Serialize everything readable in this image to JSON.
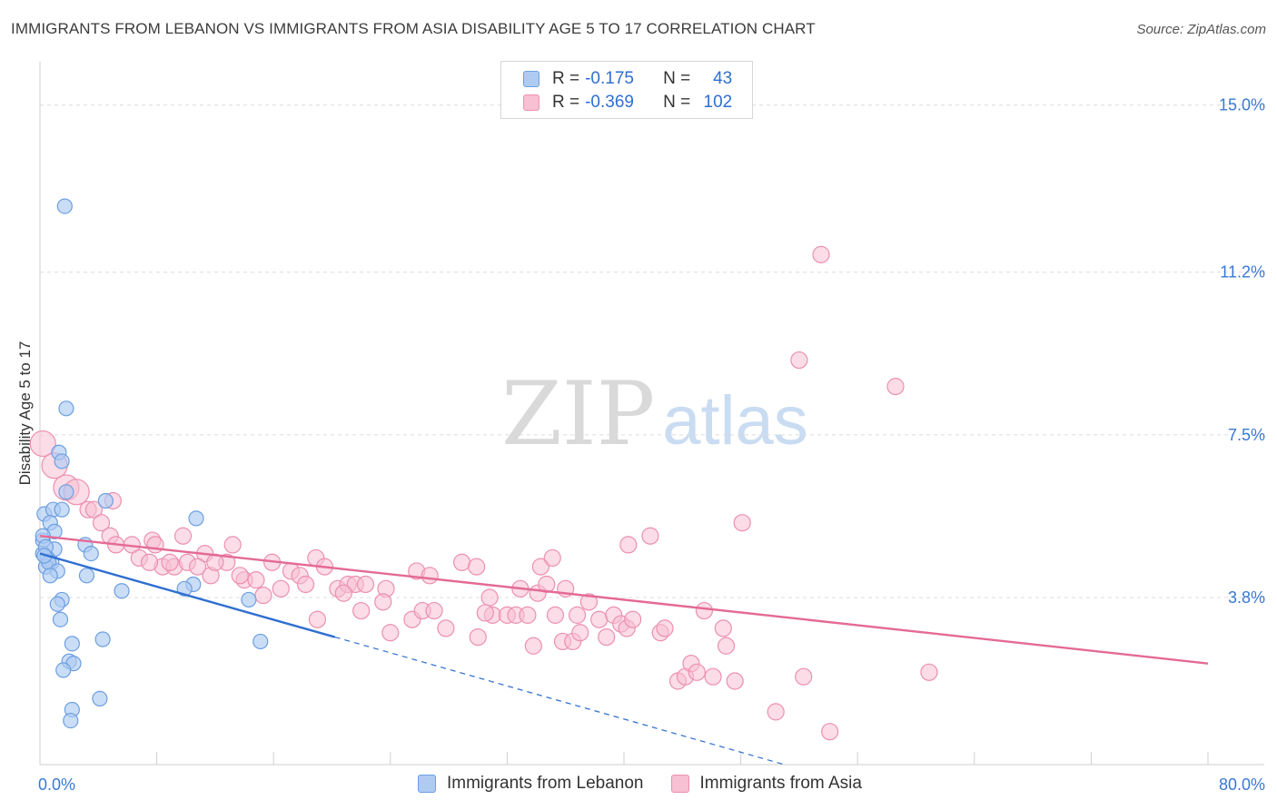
{
  "header": {
    "title": "IMMIGRANTS FROM LEBANON VS IMMIGRANTS FROM ASIA DISABILITY AGE 5 TO 17 CORRELATION CHART",
    "source": "Source: ZipAtlas.com"
  },
  "watermark": {
    "zip": "ZIP",
    "atlas": "atlas"
  },
  "legend": {
    "rows": [
      {
        "r_label": "R =",
        "r_value": "-0.175",
        "n_label": "N =",
        "n_value": "43"
      },
      {
        "r_label": "R =",
        "r_value": "-0.369",
        "n_label": "N =",
        "n_value": "102"
      }
    ],
    "items": [
      {
        "label": "Immigrants from Lebanon"
      },
      {
        "label": "Immigrants from Asia"
      }
    ]
  },
  "colors": {
    "lebanon_fill": "#aecbf2",
    "lebanon_stroke": "#6c9fe0",
    "lebanon_line": "#2f6fd1",
    "asia_fill": "#f7c0d3",
    "asia_stroke": "#ec8fb0",
    "asia_line": "#e46a95",
    "grid": "#dcdcdc",
    "tick_label": "#3a78d4"
  },
  "chart_data": {
    "type": "scatter",
    "title": "IMMIGRANTS FROM LEBANON VS IMMIGRANTS FROM ASIA DISABILITY AGE 5 TO 17 CORRELATION CHART",
    "xlabel": "",
    "ylabel": "Disability Age 5 to 17",
    "xlim": [
      0,
      80
    ],
    "ylim": [
      0,
      15.8
    ],
    "x_tick_labels": {
      "left": "0.0%",
      "right": "80.0%"
    },
    "y_ticks": [
      {
        "value": 3.8,
        "label": "3.8%"
      },
      {
        "value": 7.5,
        "label": "7.5%"
      },
      {
        "value": 11.2,
        "label": "11.2%"
      },
      {
        "value": 15.0,
        "label": "15.0%"
      }
    ],
    "grid": "horizontal dashed",
    "legend_position": "top-center",
    "series": [
      {
        "name": "Immigrants from Lebanon",
        "points": [
          [
            1.7,
            12.7
          ],
          [
            1.8,
            8.1
          ],
          [
            1.3,
            7.1
          ],
          [
            1.5,
            6.9
          ],
          [
            1.8,
            6.2
          ],
          [
            4.5,
            6.0
          ],
          [
            0.3,
            5.7
          ],
          [
            0.9,
            5.8
          ],
          [
            1.5,
            5.8
          ],
          [
            0.7,
            5.5
          ],
          [
            1.0,
            5.3
          ],
          [
            0.2,
            5.1
          ],
          [
            3.1,
            5.0
          ],
          [
            1.0,
            4.9
          ],
          [
            0.2,
            4.8
          ],
          [
            0.5,
            4.7
          ],
          [
            0.8,
            4.6
          ],
          [
            0.4,
            4.5
          ],
          [
            0.6,
            4.6
          ],
          [
            1.2,
            4.4
          ],
          [
            0.7,
            4.3
          ],
          [
            3.2,
            4.3
          ],
          [
            3.5,
            4.8
          ],
          [
            10.7,
            5.6
          ],
          [
            10.5,
            4.1
          ],
          [
            9.9,
            4.0
          ],
          [
            5.6,
            3.95
          ],
          [
            14.3,
            3.75
          ],
          [
            1.5,
            3.75
          ],
          [
            1.2,
            3.65
          ],
          [
            1.4,
            3.3
          ],
          [
            2.2,
            2.75
          ],
          [
            4.3,
            2.85
          ],
          [
            15.1,
            2.8
          ],
          [
            2.0,
            2.35
          ],
          [
            2.3,
            2.3
          ],
          [
            1.6,
            2.15
          ],
          [
            4.1,
            1.5
          ],
          [
            2.2,
            1.25
          ],
          [
            2.1,
            1.0
          ],
          [
            0.2,
            5.2
          ],
          [
            0.4,
            4.95
          ],
          [
            0.3,
            4.75
          ]
        ],
        "trend": {
          "x": [
            0,
            20.2
          ],
          "y": [
            4.8,
            2.9
          ],
          "dashed_extension": {
            "x": [
              20.2,
              51
            ],
            "y": [
              2.9,
              0
            ]
          }
        }
      },
      {
        "name": "Immigrants from Asia",
        "points": [
          [
            0.2,
            7.3
          ],
          [
            1.0,
            6.8
          ],
          [
            1.8,
            6.3
          ],
          [
            2.5,
            6.2
          ],
          [
            5.0,
            6.0
          ],
          [
            3.3,
            5.8
          ],
          [
            3.7,
            5.8
          ],
          [
            4.2,
            5.5
          ],
          [
            4.8,
            5.2
          ],
          [
            5.2,
            5.0
          ],
          [
            6.3,
            5.0
          ],
          [
            7.7,
            5.1
          ],
          [
            7.9,
            5.0
          ],
          [
            9.8,
            5.2
          ],
          [
            11.3,
            4.8
          ],
          [
            6.8,
            4.7
          ],
          [
            8.4,
            4.5
          ],
          [
            9.2,
            4.5
          ],
          [
            10.1,
            4.6
          ],
          [
            10.8,
            4.5
          ],
          [
            11.7,
            4.3
          ],
          [
            12.8,
            4.6
          ],
          [
            13.2,
            5.0
          ],
          [
            14.0,
            4.2
          ],
          [
            14.8,
            4.2
          ],
          [
            15.9,
            4.6
          ],
          [
            17.2,
            4.4
          ],
          [
            17.8,
            4.3
          ],
          [
            18.2,
            4.1
          ],
          [
            18.9,
            4.7
          ],
          [
            19.5,
            4.5
          ],
          [
            20.4,
            4.0
          ],
          [
            21.1,
            4.1
          ],
          [
            21.6,
            4.1
          ],
          [
            22.3,
            4.1
          ],
          [
            23.7,
            4.0
          ],
          [
            22.0,
            3.5
          ],
          [
            23.5,
            3.7
          ],
          [
            24.0,
            3.0
          ],
          [
            25.5,
            3.3
          ],
          [
            26.2,
            3.5
          ],
          [
            25.8,
            4.4
          ],
          [
            26.7,
            4.3
          ],
          [
            27.8,
            3.1
          ],
          [
            28.9,
            4.6
          ],
          [
            29.9,
            4.5
          ],
          [
            30.8,
            3.8
          ],
          [
            30.0,
            2.9
          ],
          [
            31.0,
            3.4
          ],
          [
            32.0,
            3.4
          ],
          [
            32.6,
            3.4
          ],
          [
            33.4,
            3.4
          ],
          [
            33.8,
            2.7
          ],
          [
            34.1,
            3.9
          ],
          [
            34.3,
            4.5
          ],
          [
            35.1,
            4.7
          ],
          [
            35.3,
            3.4
          ],
          [
            36.0,
            4.0
          ],
          [
            35.8,
            2.8
          ],
          [
            36.5,
            2.8
          ],
          [
            37.0,
            3.0
          ],
          [
            36.8,
            3.4
          ],
          [
            37.6,
            3.7
          ],
          [
            38.3,
            3.3
          ],
          [
            38.8,
            2.9
          ],
          [
            39.3,
            3.4
          ],
          [
            39.8,
            3.2
          ],
          [
            40.2,
            3.1
          ],
          [
            40.6,
            3.3
          ],
          [
            40.3,
            5.0
          ],
          [
            41.8,
            5.2
          ],
          [
            42.5,
            3.0
          ],
          [
            42.8,
            3.1
          ],
          [
            43.7,
            1.9
          ],
          [
            44.2,
            2.0
          ],
          [
            44.6,
            2.3
          ],
          [
            45.0,
            2.1
          ],
          [
            45.5,
            3.5
          ],
          [
            46.1,
            2.0
          ],
          [
            46.8,
            3.1
          ],
          [
            47.0,
            2.7
          ],
          [
            47.6,
            1.9
          ],
          [
            48.1,
            5.5
          ],
          [
            50.4,
            1.2
          ],
          [
            52.3,
            2.0
          ],
          [
            52.0,
            9.2
          ],
          [
            53.5,
            11.6
          ],
          [
            54.1,
            0.75
          ],
          [
            58.6,
            8.6
          ],
          [
            60.9,
            2.1
          ],
          [
            7.5,
            4.6
          ],
          [
            8.9,
            4.6
          ],
          [
            12.0,
            4.6
          ],
          [
            13.7,
            4.3
          ],
          [
            15.3,
            3.85
          ],
          [
            16.5,
            4.0
          ],
          [
            19.0,
            3.3
          ],
          [
            20.8,
            3.9
          ],
          [
            27.0,
            3.5
          ],
          [
            30.5,
            3.45
          ],
          [
            32.9,
            4.0
          ],
          [
            34.7,
            4.1
          ]
        ],
        "trend": {
          "x": [
            0,
            80
          ],
          "y": [
            5.2,
            2.3
          ]
        }
      }
    ]
  }
}
